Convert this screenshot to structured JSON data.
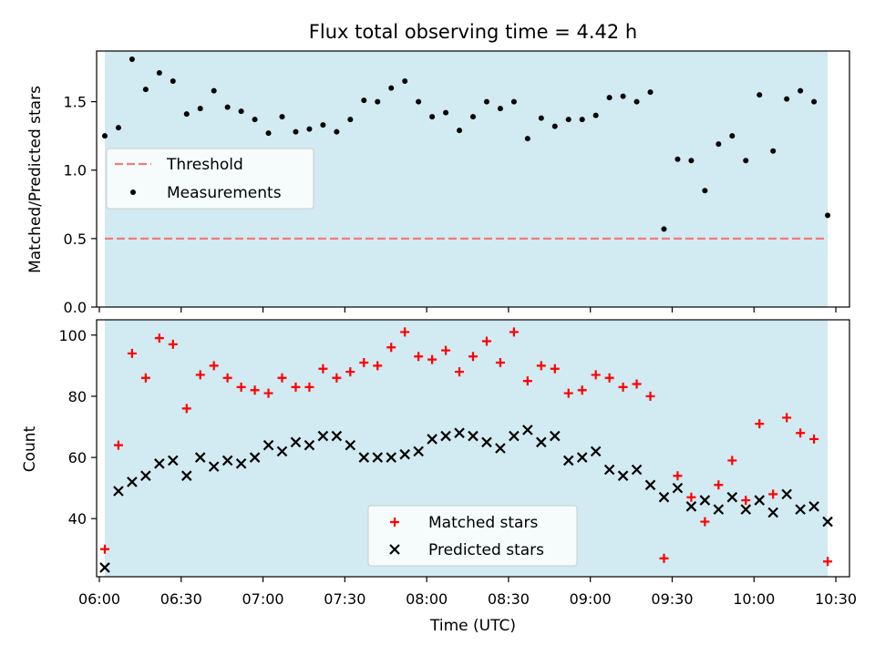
{
  "title": "Flux total observing time = 4.42 h",
  "colors": {
    "band": "#add8e6",
    "threshold": "#f07c7c",
    "measurement": "#000000",
    "matched": "#ff0000",
    "predicted": "#000000"
  },
  "chart_data": [
    {
      "type": "scatter",
      "panel": "top",
      "xlabel": "",
      "ylabel": "Matched/Predicted stars",
      "xlim": [
        "05:59",
        "10:35"
      ],
      "ylim": [
        0,
        1.87
      ],
      "yticks": [
        0.0,
        0.5,
        1.0,
        1.5
      ],
      "yticklabels": [
        "0.0",
        "0.5",
        "1.0",
        "1.5"
      ],
      "shaded_span": [
        "06:02",
        "10:27"
      ],
      "legend_placement": "center-left",
      "threshold": {
        "name": "Threshold",
        "value": 0.5,
        "x_range": [
          "06:02",
          "10:27"
        ]
      },
      "measurements": {
        "name": "Measurements",
        "x": [
          "06:02",
          "06:07",
          "06:12",
          "06:17",
          "06:22",
          "06:27",
          "06:32",
          "06:37",
          "06:42",
          "06:47",
          "06:52",
          "06:57",
          "07:02",
          "07:07",
          "07:12",
          "07:17",
          "07:22",
          "07:27",
          "07:32",
          "07:37",
          "07:42",
          "07:47",
          "07:52",
          "07:57",
          "08:02",
          "08:07",
          "08:12",
          "08:17",
          "08:22",
          "08:27",
          "08:32",
          "08:37",
          "08:42",
          "08:47",
          "08:52",
          "08:57",
          "09:02",
          "09:07",
          "09:12",
          "09:17",
          "09:22",
          "09:27",
          "09:32",
          "09:37",
          "09:42",
          "09:47",
          "09:52",
          "09:57",
          "10:02",
          "10:07",
          "10:12",
          "10:17",
          "10:22",
          "10:27"
        ],
        "y": [
          1.25,
          1.31,
          1.81,
          1.59,
          1.71,
          1.65,
          1.41,
          1.45,
          1.58,
          1.46,
          1.43,
          1.37,
          1.27,
          1.39,
          1.28,
          1.3,
          1.33,
          1.28,
          1.37,
          1.51,
          1.5,
          1.6,
          1.65,
          1.5,
          1.39,
          1.42,
          1.29,
          1.39,
          1.5,
          1.45,
          1.5,
          1.23,
          1.38,
          1.32,
          1.37,
          1.37,
          1.4,
          1.53,
          1.54,
          1.5,
          1.57,
          0.57,
          1.08,
          1.07,
          0.85,
          1.19,
          1.25,
          1.07,
          1.55,
          1.14,
          1.52,
          1.58,
          1.5,
          0.67
        ]
      }
    },
    {
      "type": "scatter",
      "panel": "bottom",
      "xlabel": "Time (UTC)",
      "ylabel": "Count",
      "xlim": [
        "05:59",
        "10:35"
      ],
      "ylim": [
        21,
        105
      ],
      "yticks": [
        40,
        60,
        80,
        100
      ],
      "yticklabels": [
        "40",
        "60",
        "80",
        "100"
      ],
      "xticks": [
        "06:00",
        "06:30",
        "07:00",
        "07:30",
        "08:00",
        "08:30",
        "09:00",
        "09:30",
        "10:00",
        "10:30"
      ],
      "shaded_span": [
        "06:02",
        "10:27"
      ],
      "legend_placement": "lower-center",
      "x": [
        "06:02",
        "06:07",
        "06:12",
        "06:17",
        "06:22",
        "06:27",
        "06:32",
        "06:37",
        "06:42",
        "06:47",
        "06:52",
        "06:57",
        "07:02",
        "07:07",
        "07:12",
        "07:17",
        "07:22",
        "07:27",
        "07:32",
        "07:37",
        "07:42",
        "07:47",
        "07:52",
        "07:57",
        "08:02",
        "08:07",
        "08:12",
        "08:17",
        "08:22",
        "08:27",
        "08:32",
        "08:37",
        "08:42",
        "08:47",
        "08:52",
        "08:57",
        "09:02",
        "09:07",
        "09:12",
        "09:17",
        "09:22",
        "09:27",
        "09:32",
        "09:37",
        "09:42",
        "09:47",
        "09:52",
        "09:57",
        "10:02",
        "10:07",
        "10:12",
        "10:17",
        "10:22",
        "10:27"
      ],
      "series": [
        {
          "name": "Matched stars",
          "marker": "plus",
          "values": [
            30,
            64,
            94,
            86,
            99,
            97,
            76,
            87,
            90,
            86,
            83,
            82,
            81,
            86,
            83,
            83,
            89,
            86,
            88,
            91,
            90,
            96,
            101,
            93,
            92,
            95,
            88,
            93,
            98,
            91,
            101,
            85,
            90,
            89,
            81,
            82,
            87,
            86,
            83,
            84,
            80,
            27,
            54,
            47,
            39,
            51,
            59,
            46,
            71,
            48,
            73,
            68,
            66,
            26
          ]
        },
        {
          "name": "Predicted stars",
          "marker": "x",
          "values": [
            24,
            49,
            52,
            54,
            58,
            59,
            54,
            60,
            57,
            59,
            58,
            60,
            64,
            62,
            65,
            64,
            67,
            67,
            64,
            60,
            60,
            60,
            61,
            62,
            66,
            67,
            68,
            67,
            65,
            63,
            67,
            69,
            65,
            67,
            59,
            60,
            62,
            56,
            54,
            56,
            51,
            47,
            50,
            44,
            46,
            43,
            47,
            43,
            46,
            42,
            48,
            43,
            44,
            39
          ]
        }
      ]
    }
  ]
}
